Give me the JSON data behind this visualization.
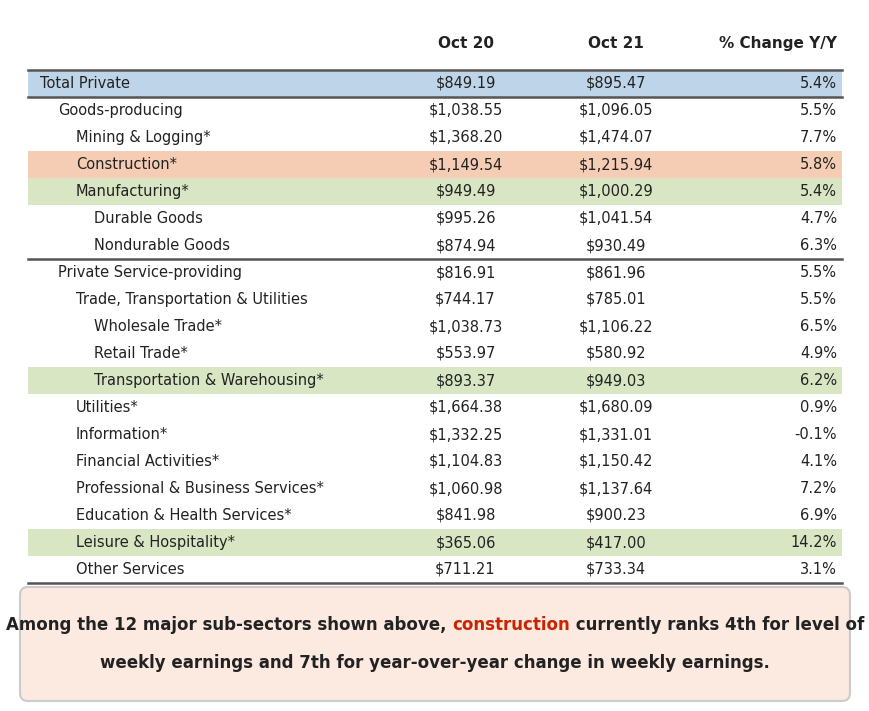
{
  "headers": [
    "",
    "Oct 20",
    "Oct 21",
    "% Change Y/Y"
  ],
  "rows": [
    {
      "label": "Total Private",
      "oct20": "$849.19",
      "oct21": "$895.47",
      "pct": "5.4%",
      "indent": 0,
      "bg": "#bed4e8",
      "bold": false,
      "highlight": "none"
    },
    {
      "label": "Goods-producing",
      "oct20": "$1,038.55",
      "oct21": "$1,096.05",
      "pct": "5.5%",
      "indent": 1,
      "bg": "#ffffff",
      "bold": false,
      "highlight": "none"
    },
    {
      "label": "Mining & Logging*",
      "oct20": "$1,368.20",
      "oct21": "$1,474.07",
      "pct": "7.7%",
      "indent": 2,
      "bg": "#ffffff",
      "bold": false,
      "highlight": "none"
    },
    {
      "label": "Construction*",
      "oct20": "$1,149.54",
      "oct21": "$1,215.94",
      "pct": "5.8%",
      "indent": 2,
      "bg": "#f5cdb4",
      "bold": false,
      "highlight": "orange"
    },
    {
      "label": "Manufacturing*",
      "oct20": "$949.49",
      "oct21": "$1,000.29",
      "pct": "5.4%",
      "indent": 2,
      "bg": "#d9e6c3",
      "bold": false,
      "highlight": "green"
    },
    {
      "label": "Durable Goods",
      "oct20": "$995.26",
      "oct21": "$1,041.54",
      "pct": "4.7%",
      "indent": 3,
      "bg": "#ffffff",
      "bold": false,
      "highlight": "none"
    },
    {
      "label": "Nondurable Goods",
      "oct20": "$874.94",
      "oct21": "$930.49",
      "pct": "6.3%",
      "indent": 3,
      "bg": "#ffffff",
      "bold": false,
      "highlight": "none"
    },
    {
      "label": "Private Service-providing",
      "oct20": "$816.91",
      "oct21": "$861.96",
      "pct": "5.5%",
      "indent": 1,
      "bg": "#ffffff",
      "bold": false,
      "highlight": "none"
    },
    {
      "label": "Trade, Transportation & Utilities",
      "oct20": "$744.17",
      "oct21": "$785.01",
      "pct": "5.5%",
      "indent": 2,
      "bg": "#ffffff",
      "bold": false,
      "highlight": "none"
    },
    {
      "label": "Wholesale Trade*",
      "oct20": "$1,038.73",
      "oct21": "$1,106.22",
      "pct": "6.5%",
      "indent": 3,
      "bg": "#ffffff",
      "bold": false,
      "highlight": "none"
    },
    {
      "label": "Retail Trade*",
      "oct20": "$553.97",
      "oct21": "$580.92",
      "pct": "4.9%",
      "indent": 3,
      "bg": "#ffffff",
      "bold": false,
      "highlight": "none"
    },
    {
      "label": "Transportation & Warehousing*",
      "oct20": "$893.37",
      "oct21": "$949.03",
      "pct": "6.2%",
      "indent": 3,
      "bg": "#d9e6c3",
      "bold": false,
      "highlight": "green"
    },
    {
      "label": "Utilities*",
      "oct20": "$1,664.38",
      "oct21": "$1,680.09",
      "pct": "0.9%",
      "indent": 2,
      "bg": "#ffffff",
      "bold": false,
      "highlight": "none"
    },
    {
      "label": "Information*",
      "oct20": "$1,332.25",
      "oct21": "$1,331.01",
      "pct": "-0.1%",
      "indent": 2,
      "bg": "#ffffff",
      "bold": false,
      "highlight": "none"
    },
    {
      "label": "Financial Activities*",
      "oct20": "$1,104.83",
      "oct21": "$1,150.42",
      "pct": "4.1%",
      "indent": 2,
      "bg": "#ffffff",
      "bold": false,
      "highlight": "none"
    },
    {
      "label": "Professional & Business Services*",
      "oct20": "$1,060.98",
      "oct21": "$1,137.64",
      "pct": "7.2%",
      "indent": 2,
      "bg": "#ffffff",
      "bold": false,
      "highlight": "none"
    },
    {
      "label": "Education & Health Services*",
      "oct20": "$841.98",
      "oct21": "$900.23",
      "pct": "6.9%",
      "indent": 2,
      "bg": "#ffffff",
      "bold": false,
      "highlight": "none"
    },
    {
      "label": "Leisure & Hospitality*",
      "oct20": "$365.06",
      "oct21": "$417.00",
      "pct": "14.2%",
      "indent": 2,
      "bg": "#d9e6c3",
      "bold": false,
      "highlight": "green"
    },
    {
      "label": "Other Services",
      "oct20": "$711.21",
      "oct21": "$733.34",
      "pct": "3.1%",
      "indent": 2,
      "bg": "#ffffff",
      "bold": false,
      "highlight": "none"
    }
  ],
  "footer_part1": "Among the 12 major sub-sectors shown above, ",
  "footer_part2": "construction",
  "footer_part3": " currently ranks 4th for level of",
  "footer_line2": "weekly earnings and 7th for year-over-year change in weekly earnings.",
  "footer_bg": "#fce9e0",
  "footer_text_color": "#222222",
  "footer_highlight_color": "#cc2200",
  "outer_bg": "#ffffff",
  "header_fontsize": 11,
  "row_fontsize": 10.5,
  "footer_fontsize": 12
}
